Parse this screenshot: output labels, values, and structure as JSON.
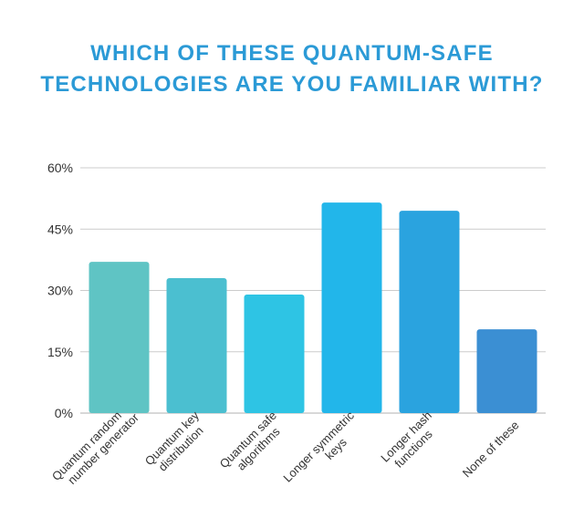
{
  "title_line1": "WHICH OF THESE QUANTUM-SAFE",
  "title_line2": "TECHNOLOGIES ARE YOU FAMILIAR WITH?",
  "chart_data": {
    "type": "bar",
    "title": "WHICH OF THESE QUANTUM-SAFE TECHNOLOGIES ARE YOU FAMILIAR WITH?",
    "categories": [
      [
        "Quantum random",
        "number generator"
      ],
      [
        "Quantum key",
        "distribution"
      ],
      [
        "Quantum safe",
        "algorithms"
      ],
      [
        "Longer symmetric",
        "keys"
      ],
      [
        "Longer hash",
        "functions"
      ],
      [
        "None of these"
      ]
    ],
    "values": [
      37,
      33,
      29,
      51.5,
      49.5,
      20.5
    ],
    "bar_colors": [
      "#5fc4c4",
      "#4bbfd0",
      "#2ec4e4",
      "#22b6ea",
      "#2aa3df",
      "#3b8fd3"
    ],
    "ylim": [
      0,
      60
    ],
    "yticks": [
      0,
      15,
      30,
      45,
      60
    ],
    "ytick_labels": [
      "0%",
      "15%",
      "30%",
      "45%",
      "60%"
    ],
    "grid": true,
    "grid_color": "#cccccc"
  }
}
